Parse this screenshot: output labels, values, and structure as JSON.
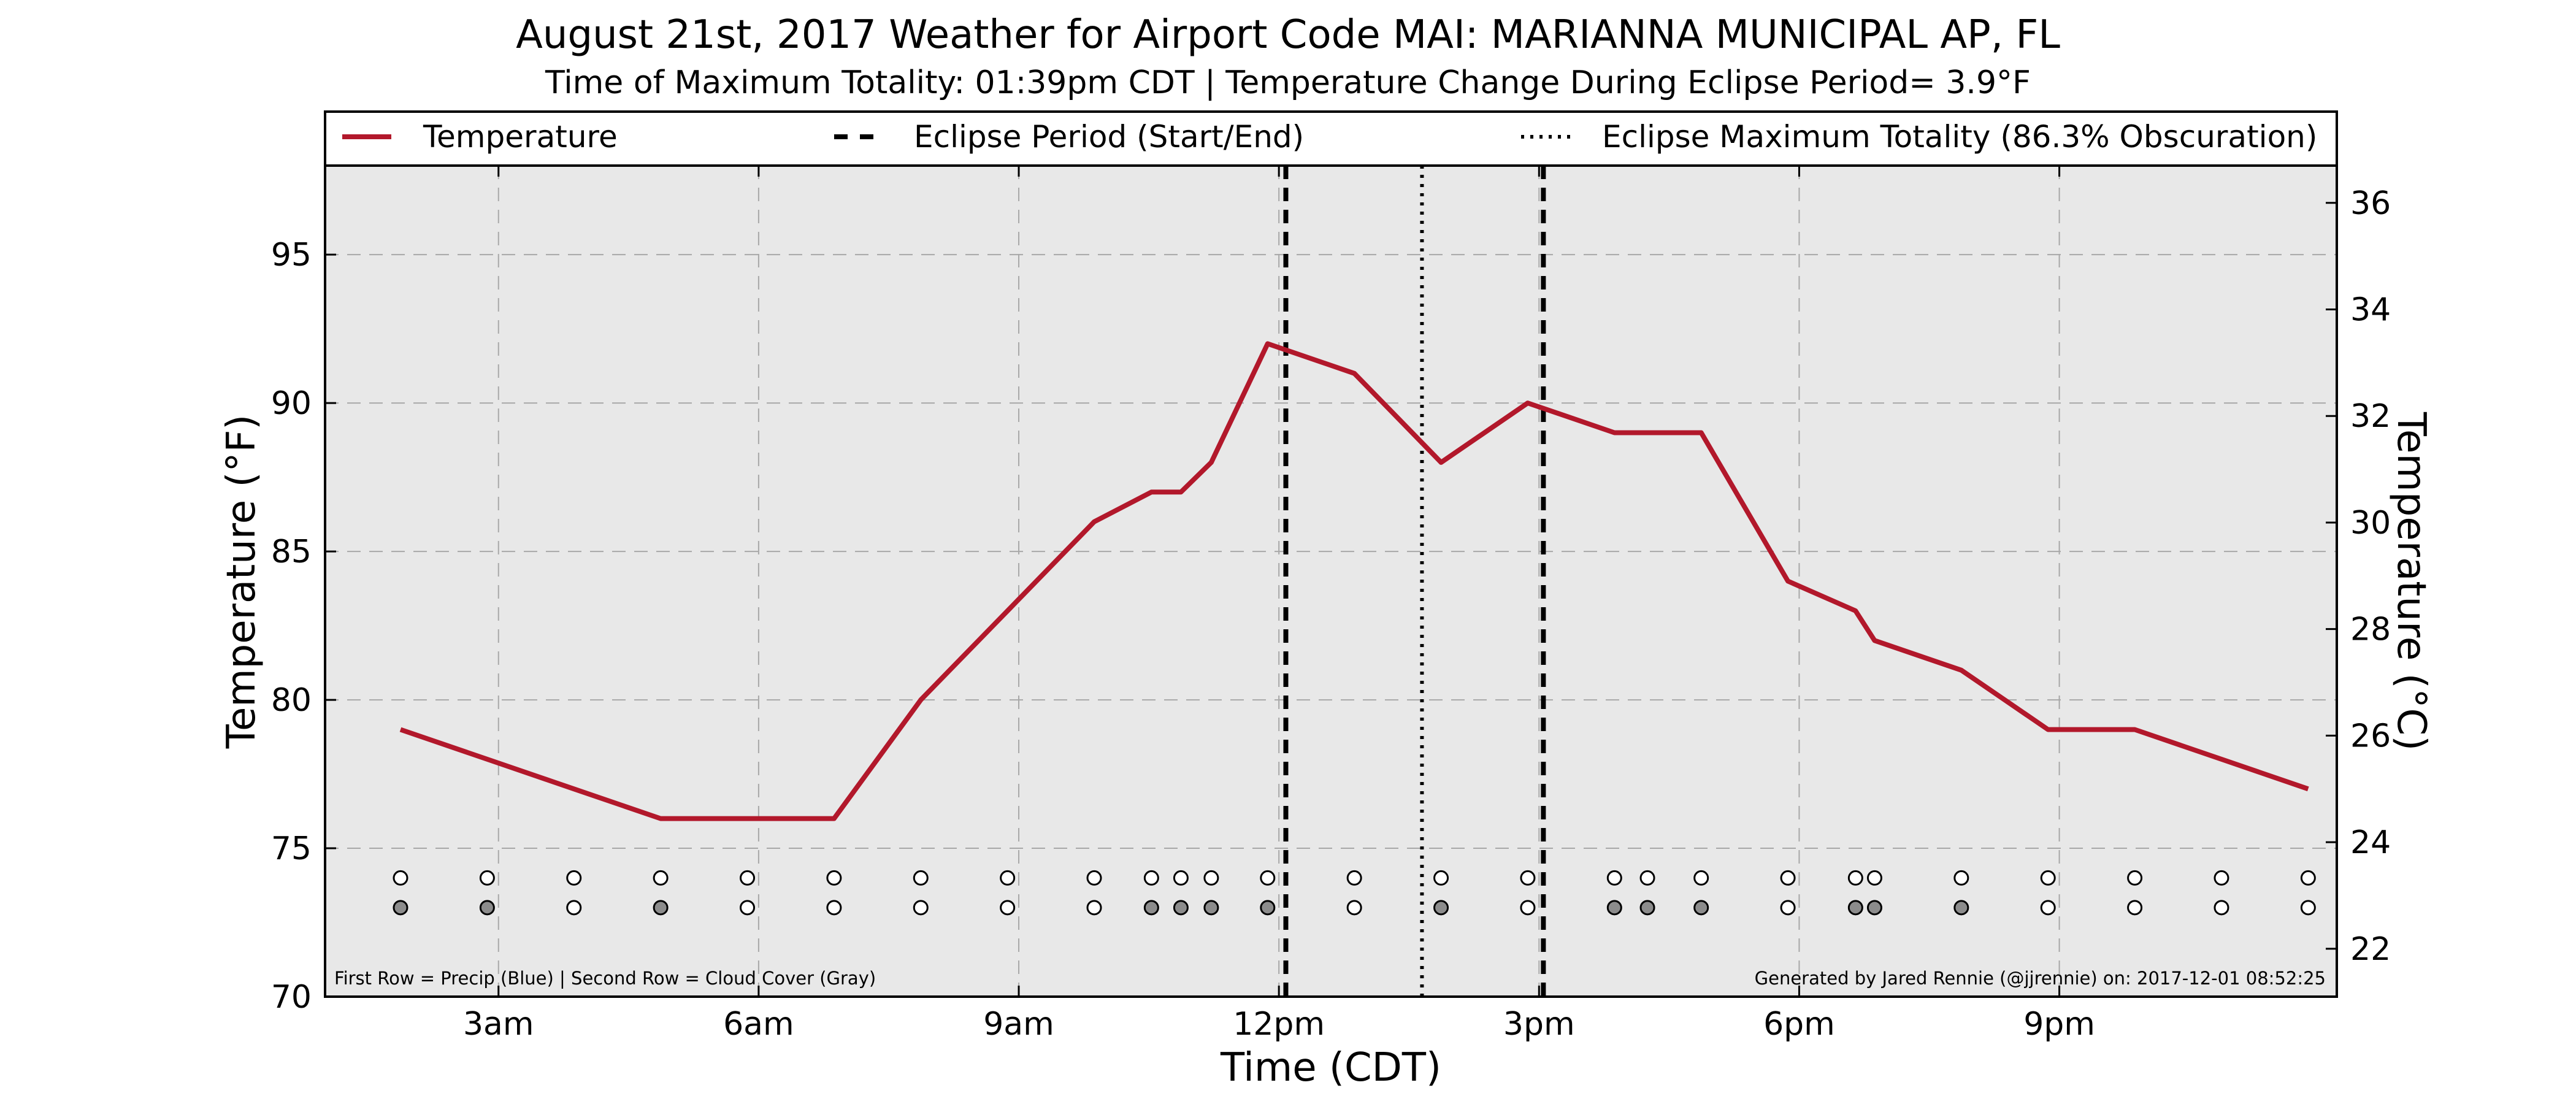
{
  "chart_data": {
    "type": "line",
    "title": "August 21st, 2017 Weather for Airport Code MAI: MARIANNA MUNICIPAL AP, FL",
    "subtitle": "Time of Maximum Totality: 01:39pm CDT | Temperature Change During Eclipse Period= 3.9°F",
    "xlabel": "Time (CDT)",
    "ylabel": "Temperature (°F)",
    "ylabel_right": "Temperature (°C)",
    "xlim": [
      1.0,
      24.2
    ],
    "ylim": [
      70,
      98
    ],
    "ylim_right": [
      21.1,
      36.7
    ],
    "x_ticks": [
      {
        "x": 3,
        "label": "3am"
      },
      {
        "x": 6,
        "label": "6am"
      },
      {
        "x": 9,
        "label": "9am"
      },
      {
        "x": 12,
        "label": "12pm"
      },
      {
        "x": 15,
        "label": "3pm"
      },
      {
        "x": 18,
        "label": "6pm"
      },
      {
        "x": 21,
        "label": "9pm"
      }
    ],
    "y_ticks": [
      70,
      75,
      80,
      85,
      90,
      95
    ],
    "y_ticks_right": [
      22,
      24,
      26,
      28,
      30,
      32,
      34,
      36
    ],
    "grid": true,
    "legend_position": "top",
    "legend": [
      {
        "label": "Temperature",
        "style": "line"
      },
      {
        "label": "Eclipse Period (Start/End)",
        "style": "dashed"
      },
      {
        "label": "Eclipse Maximum Totality (86.3% Obscuration)",
        "style": "dotted"
      }
    ],
    "series": [
      {
        "name": "Temperature",
        "color": "#b2182b",
        "x": [
          1.87,
          2.87,
          3.87,
          4.87,
          5.87,
          6.87,
          7.87,
          8.87,
          9.87,
          10.53,
          10.87,
          11.22,
          11.87,
          12.87,
          13.87,
          14.87,
          15.87,
          16.25,
          16.87,
          17.87,
          18.65,
          18.87,
          19.87,
          20.87,
          21.87,
          22.87,
          23.87
        ],
        "values": [
          79,
          78,
          77,
          76,
          76,
          76,
          80,
          83,
          86,
          87,
          87,
          88,
          92,
          91,
          88,
          90,
          89,
          89,
          89,
          84,
          83,
          82,
          81,
          79,
          79,
          78,
          77
        ]
      }
    ],
    "eclipse_start": 12.08,
    "eclipse_end": 15.05,
    "eclipse_max": 13.65,
    "precip_markers": {
      "label": "Precip",
      "y": 74,
      "x": [
        1.87,
        2.87,
        3.87,
        4.87,
        5.87,
        6.87,
        7.87,
        8.87,
        9.87,
        10.53,
        10.87,
        11.22,
        11.87,
        12.87,
        13.87,
        14.87,
        15.87,
        16.25,
        16.87,
        17.87,
        18.65,
        18.87,
        19.87,
        20.87,
        21.87,
        22.87,
        23.87
      ],
      "filled": [
        false,
        false,
        false,
        false,
        false,
        false,
        false,
        false,
        false,
        false,
        false,
        false,
        false,
        false,
        false,
        false,
        false,
        false,
        false,
        false,
        false,
        false,
        false,
        false,
        false,
        false,
        false
      ]
    },
    "cloud_markers": {
      "label": "Cloud Cover",
      "y": 73,
      "x": [
        1.87,
        2.87,
        3.87,
        4.87,
        5.87,
        6.87,
        7.87,
        8.87,
        9.87,
        10.53,
        10.87,
        11.22,
        11.87,
        12.87,
        13.87,
        14.87,
        15.87,
        16.25,
        16.87,
        17.87,
        18.65,
        18.87,
        19.87,
        20.87,
        21.87,
        22.87,
        23.87
      ],
      "filled": [
        true,
        true,
        false,
        true,
        false,
        false,
        false,
        false,
        false,
        true,
        true,
        true,
        true,
        false,
        true,
        false,
        true,
        true,
        true,
        false,
        true,
        true,
        true,
        false,
        false,
        false,
        false
      ]
    },
    "footnote_left": "First Row = Precip (Blue) | Second Row = Cloud Cover (Gray)",
    "footnote_right": "Generated by Jared Rennie (@jjrennie) on: 2017-12-01 08:52:25"
  }
}
